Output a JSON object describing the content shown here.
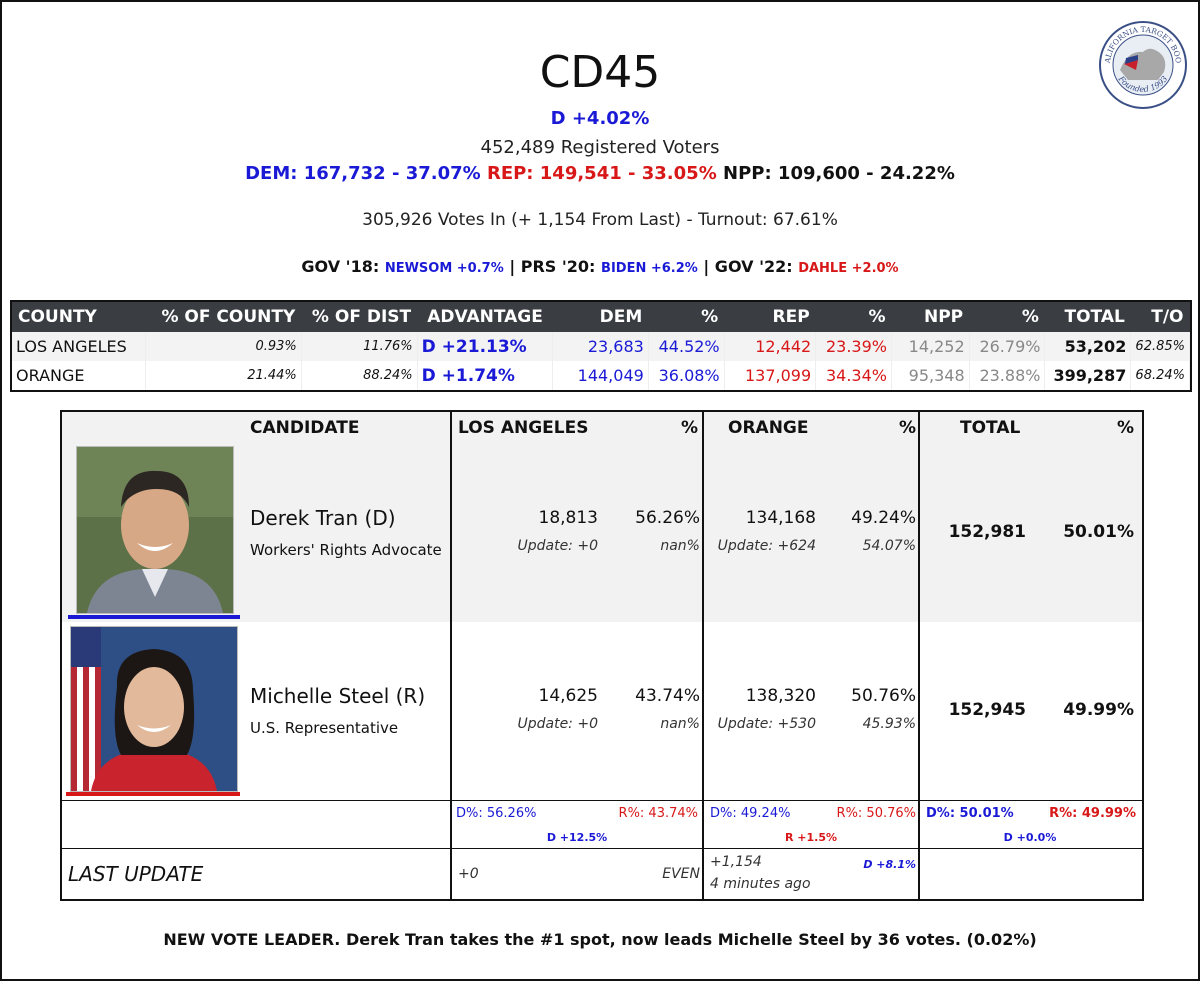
{
  "header": {
    "title": "CD45",
    "advantage": "D +4.02%",
    "registered": "452,489 Registered Voters",
    "dem": "DEM: 167,732 - 37.07%",
    "rep": "REP: 149,541 - 33.05%",
    "npp": "NPP: 109,600 - 24.22%",
    "votes_in": "305,926 Votes In (+ 1,154 From Last) - Turnout: 67.61%",
    "gov18_label": "GOV '18:",
    "gov18_value": "NEWSOM +0.7%",
    "prs20_label": "| PRS '20:",
    "prs20_value": "BIDEN +6.2%",
    "gov22_label": "| GOV '22:",
    "gov22_value": "DAHLE +2.0%"
  },
  "colors": {
    "dem": "#1a1ad6",
    "rep": "#d81818",
    "header_bg": "#3a3d42"
  },
  "county_table": {
    "headers": [
      "COUNTY",
      "% OF COUNTY",
      "% OF DIST",
      "ADVANTAGE",
      "DEM",
      "%",
      "REP",
      "%",
      "NPP",
      "%",
      "TOTAL",
      "T/O"
    ],
    "rows": [
      [
        "LOS ANGELES",
        "0.93%",
        "11.76%",
        "D +21.13%",
        "23,683",
        "44.52%",
        "12,442",
        "23.39%",
        "14,252",
        "26.79%",
        "53,202",
        "62.85%"
      ],
      [
        "ORANGE",
        "21.44%",
        "88.24%",
        "D +1.74%",
        "144,049",
        "36.08%",
        "137,099",
        "34.34%",
        "95,348",
        "23.88%",
        "399,287",
        "68.24%"
      ]
    ]
  },
  "candidate_table": {
    "headers": {
      "candidate": "CANDIDATE",
      "la": "LOS ANGELES",
      "la_pct": "%",
      "oc": "ORANGE",
      "oc_pct": "%",
      "total": "TOTAL",
      "total_pct": "%"
    },
    "candidates": [
      {
        "name": "Derek Tran (D)",
        "occupation": "Workers' Rights Advocate",
        "la_votes": "18,813",
        "la_pct": "56.26%",
        "la_update": "Update: +0",
        "la_update_pct": "nan%",
        "oc_votes": "134,168",
        "oc_pct": "49.24%",
        "oc_update": "Update: +624",
        "oc_update_pct": "54.07%",
        "total_votes": "152,981",
        "total_pct": "50.01%"
      },
      {
        "name": "Michelle Steel (R)",
        "occupation": "U.S. Representative",
        "la_votes": "14,625",
        "la_pct": "43.74%",
        "la_update": "Update: +0",
        "la_update_pct": "nan%",
        "oc_votes": "138,320",
        "oc_pct": "50.76%",
        "oc_update": "Update: +530",
        "oc_update_pct": "45.93%",
        "total_votes": "152,945",
        "total_pct": "49.99%"
      }
    ],
    "summary": {
      "la_d": "D%: 56.26%",
      "la_r": "R%: 43.74%",
      "la_margin": "D +12.5%",
      "oc_d": "D%: 49.24%",
      "oc_r": "R%: 50.76%",
      "oc_margin": "R +1.5%",
      "tot_d": "D%: 50.01%",
      "tot_r": "R%: 49.99%",
      "tot_margin": "D +0.0%"
    },
    "last_update": {
      "label": "LAST UPDATE",
      "la_change": "+0",
      "la_status": "EVEN",
      "oc_change": "+1,154",
      "oc_time": "4 minutes ago",
      "oc_margin": "D +8.1%"
    }
  },
  "footer": "NEW VOTE LEADER. Derek Tran takes the #1 spot, now leads Michelle Steel by 36 votes. (0.02%)",
  "logo": {
    "top_text": "CALIFORNIA TARGET BOOK",
    "bottom_text": "Founded 1993"
  }
}
